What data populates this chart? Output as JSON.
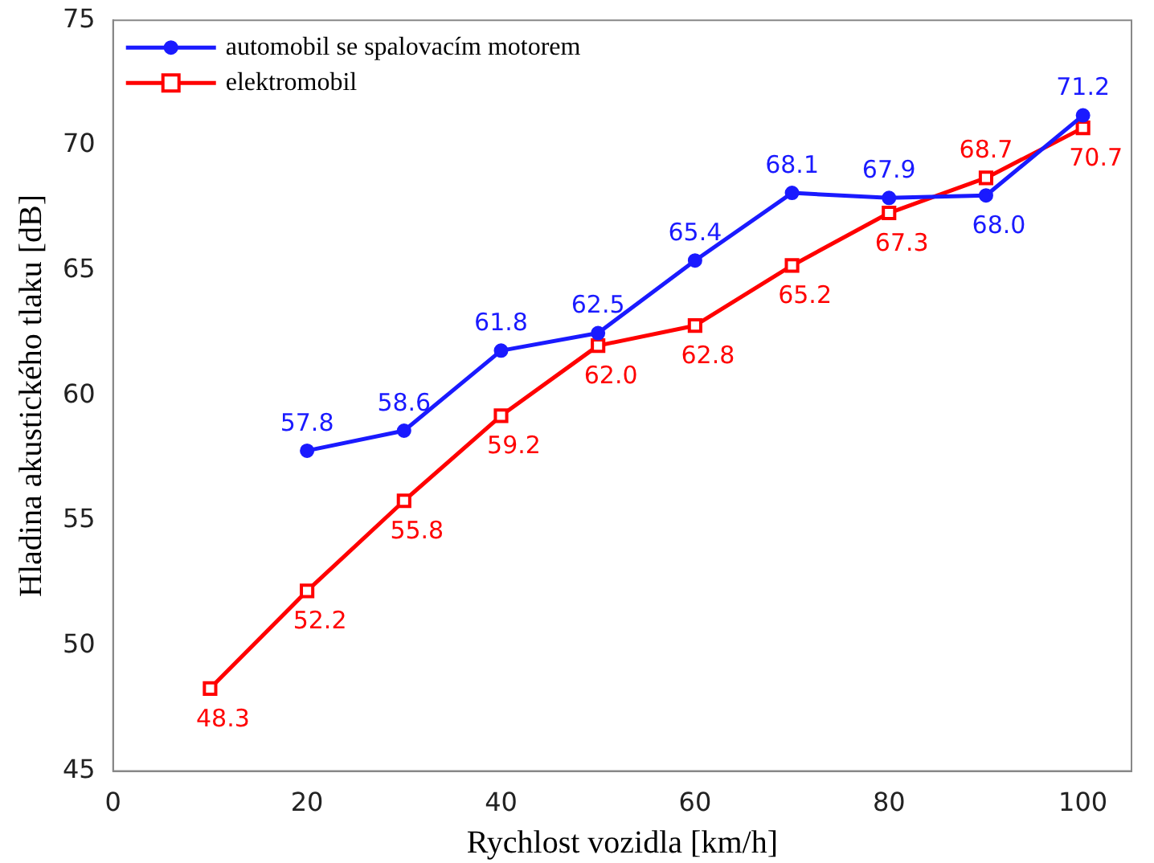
{
  "chart_data": {
    "type": "line",
    "xlabel": "Rychlost vozidla [km/h]",
    "ylabel": "Hladina akustického tlaku [dB]",
    "xlim": [
      0,
      105
    ],
    "xticks": [
      0,
      20,
      40,
      60,
      80,
      100
    ],
    "ylim": [
      45,
      75
    ],
    "yticks": [
      45,
      50,
      55,
      60,
      65,
      70,
      75
    ],
    "grid": false,
    "legend": "top left",
    "line_style": "solid",
    "series": [
      {
        "name": "automobil se spalovacím motorem",
        "color": "#1a1aff",
        "marker": "circle",
        "x": [
          20,
          30,
          40,
          50,
          60,
          70,
          80,
          90,
          100
        ],
        "values": [
          57.8,
          58.6,
          61.8,
          62.5,
          65.4,
          68.1,
          67.9,
          68.0,
          71.2
        ],
        "value_labels": [
          "57.8",
          "58.6",
          "61.8",
          "62.5",
          "65.4",
          "68.1",
          "67.9",
          "68.0",
          "71.2"
        ]
      },
      {
        "name": "elektromobil",
        "color": "#ff0000",
        "marker": "square",
        "x": [
          10,
          20,
          30,
          40,
          50,
          60,
          70,
          80,
          90,
          100
        ],
        "values": [
          48.3,
          52.2,
          55.8,
          59.2,
          62.0,
          62.8,
          65.2,
          67.3,
          68.7,
          70.7
        ],
        "value_labels": [
          "48.3",
          "52.2",
          "55.8",
          "59.2",
          "62.0",
          "62.8",
          "65.2",
          "67.3",
          "68.7",
          "70.7"
        ]
      }
    ]
  }
}
